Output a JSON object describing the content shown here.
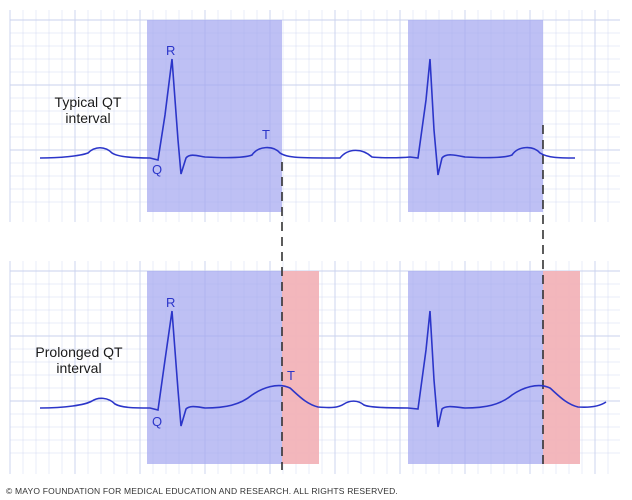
{
  "panels": {
    "typical": {
      "label_line1": "Typical QT",
      "label_line2": "interval"
    },
    "prolonged": {
      "label_line1": "Prolonged QT",
      "label_line2": "interval"
    }
  },
  "wave_labels": {
    "r": "R",
    "q": "Q",
    "t": "T"
  },
  "copyright": "© MAYO FOUNDATION FOR MEDICAL EDUCATION AND RESEARCH. ALL RIGHTS RESERVED.",
  "colors": {
    "trace": "#2b35c9",
    "qt_highlight": "#a5a8f0",
    "prolongation_highlight": "#f2b3b8",
    "grid": "#c9d1ee",
    "dashed_marker": "#333333"
  }
}
